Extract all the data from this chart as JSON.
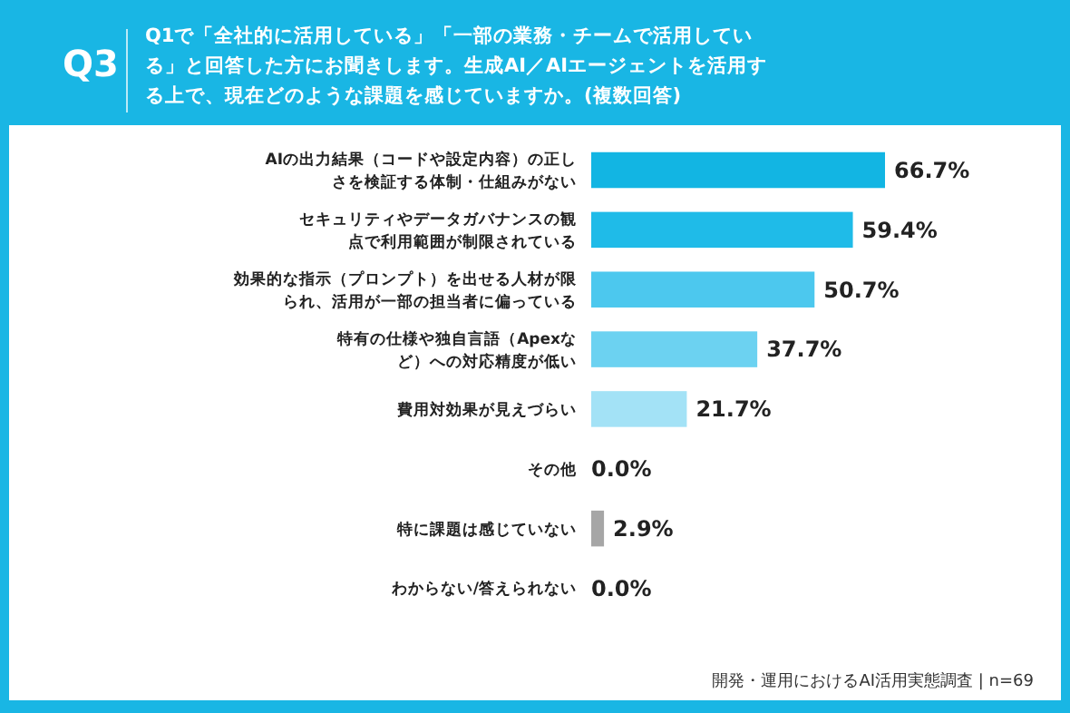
{
  "chart_data": {
    "type": "bar",
    "orientation": "horizontal",
    "title": "Q3",
    "subtitle": "Q1で「全社的に活用している」「一部の業務・チームで活用している」と回答した方にお聞きします。生成AI／AIエージェントを活用する上で、現在どのような課題を感じていますか。(複数回答)",
    "categories": [
      "AIの出力結果（コードや設定内容）の正しさを検証する体制・仕組みがない",
      "セキュリティやデータガバナンスの観点で利用範囲が制限されている",
      "効果的な指示（プロンプト）を出せる人材が限られ、活用が一部の担当者に偏っている",
      "特有の仕様や独自言語（Apexなど）への対応精度が低い",
      "費用対効果が見えづらい",
      "その他",
      "特に課題は感じていない",
      "わからない/答えられない"
    ],
    "values": [
      66.7,
      59.4,
      50.7,
      37.7,
      21.7,
      0.0,
      2.9,
      0.0
    ],
    "colors": [
      "#12b5e3",
      "#1fbbe8",
      "#4cc8ee",
      "#6cd2f1",
      "#a3e2f6",
      null,
      "#a6a6a6",
      null
    ],
    "value_labels": [
      "66.7%",
      "59.4%",
      "50.7%",
      "37.7%",
      "21.7%",
      "0.0%",
      "2.9%",
      "0.0%"
    ],
    "annotations": [
      "開発・運用におけるAI活用実態調査 | n=69"
    ]
  }
}
